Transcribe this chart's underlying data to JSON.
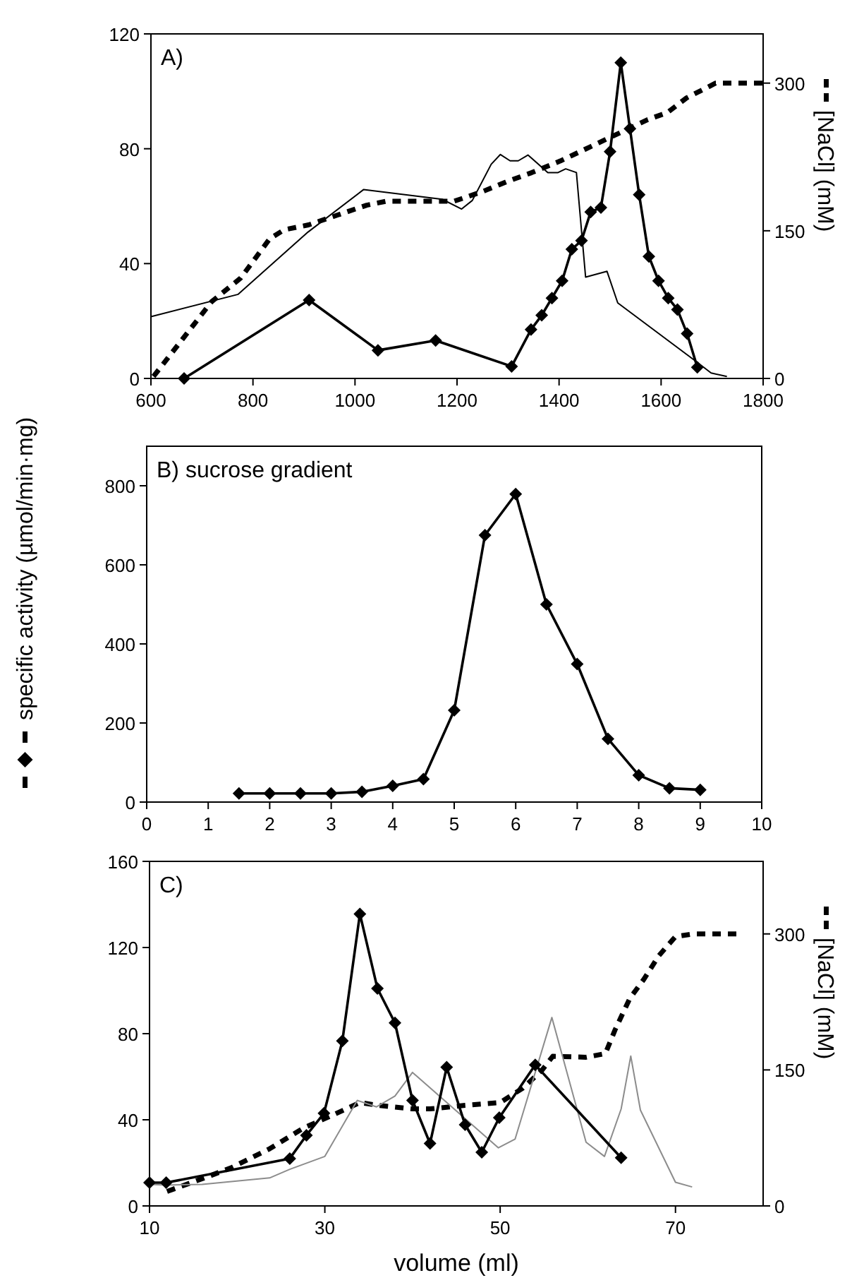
{
  "chart_data": [
    {
      "type": "line",
      "title": "A)",
      "xlim": [
        600,
        1800
      ],
      "xticks": [
        600,
        800,
        1000,
        1200,
        1400,
        1600,
        1800
      ],
      "ylim": [
        0,
        120
      ],
      "yticks": [
        0,
        40,
        80,
        120
      ],
      "y2lim": [
        0,
        350
      ],
      "y2ticks": [
        0,
        150,
        300
      ],
      "y2label": "[NaCl] (mM)",
      "series": [
        {
          "color": "#000000",
          "marker": "none",
          "line_style": "dashed",
          "axis": "y2",
          "x": [
            605,
            662,
            719,
            776,
            833,
            861,
            909,
            966,
            1023,
            1061,
            1137,
            1194,
            1251,
            1298,
            1346,
            1403,
            1460,
            1517,
            1574,
            1612,
            1650,
            1707,
            1800
          ],
          "values": [
            2,
            40,
            78,
            102,
            142,
            151,
            156,
            166,
            176,
            180,
            180,
            180,
            190,
            200,
            209,
            221,
            235,
            249,
            263,
            270,
            285,
            300,
            300
          ]
        },
        {
          "color": "#000000",
          "marker": "none",
          "line_style": "solid",
          "x": [
            600,
            771,
            908,
            1017,
            1171,
            1209,
            1230,
            1267,
            1285,
            1304,
            1320,
            1339,
            1378,
            1398,
            1413,
            1434,
            1452,
            1494,
            1515,
            1665,
            1698,
            1729
          ],
          "values": [
            21.5,
            29.3,
            51,
            65.8,
            62.4,
            59,
            62,
            74.6,
            78,
            75.8,
            75.8,
            77.8,
            71.7,
            71.7,
            73,
            71.7,
            35.3,
            37.3,
            26.3,
            6.4,
            1.9,
            0.7
          ]
        },
        {
          "color": "#000000",
          "marker": "diamond",
          "line_style": "solid",
          "x": [
            665,
            910,
            1045,
            1158,
            1307,
            1345,
            1366,
            1386,
            1406,
            1425,
            1444,
            1462,
            1482,
            1500,
            1521,
            1539,
            1557,
            1576,
            1595,
            1614,
            1632,
            1651,
            1671
          ],
          "values": [
            0,
            27.3,
            9.8,
            13.2,
            4.2,
            17,
            22,
            28,
            34,
            45,
            48,
            58,
            59.5,
            79,
            110,
            87,
            64,
            42.5,
            34,
            28,
            24,
            15.6,
            3.9
          ]
        }
      ]
    },
    {
      "type": "line",
      "title": "B) sucrose gradient",
      "ylabel": "specific activity (µmol/min·mg)",
      "xlim": [
        0,
        10
      ],
      "xticks": [
        0,
        1,
        2,
        3,
        4,
        5,
        6,
        7,
        8,
        9,
        10
      ],
      "ylim": [
        0,
        900
      ],
      "yticks": [
        0,
        200,
        400,
        600,
        800
      ],
      "series": [
        {
          "color": "#000000",
          "marker": "diamond",
          "line_style": "solid",
          "x": [
            1.5,
            2,
            2.5,
            3,
            3.5,
            4,
            4.5,
            5,
            5.5,
            6,
            6.5,
            7,
            7.5,
            8,
            8.5,
            9
          ],
          "values": [
            22,
            22,
            22,
            22,
            26,
            41,
            58,
            232,
            675,
            779,
            500,
            349,
            160,
            68,
            35,
            31
          ]
        }
      ]
    },
    {
      "type": "line",
      "title": "C)",
      "xlabel": "volume (ml)",
      "xlim": [
        10,
        80
      ],
      "xticks": [
        10,
        30,
        50,
        70
      ],
      "ylim": [
        0,
        160
      ],
      "yticks": [
        0,
        40,
        80,
        120,
        160
      ],
      "y2lim": [
        0,
        380
      ],
      "y2ticks": [
        0,
        150,
        300
      ],
      "y2label": "[NaCl] (mM)",
      "series": [
        {
          "color": "#000000",
          "marker": "none",
          "line_style": "dashed",
          "axis": "y2",
          "x": [
            12,
            16,
            19.3,
            23.7,
            27.6,
            30.4,
            34,
            36,
            40,
            42,
            46,
            50,
            52.6,
            54.8,
            56,
            59.8,
            62,
            63.1,
            64.8,
            66.4,
            68.1,
            70,
            72,
            77.3
          ],
          "values": [
            16,
            30,
            42,
            63,
            86,
            98,
            114,
            111,
            107,
            107,
            111,
            114,
            130,
            150,
            165,
            164,
            168,
            194,
            229,
            250,
            276,
            297,
            300,
            300
          ]
        },
        {
          "color": "#8c8c8c",
          "marker": "none",
          "line_style": "solid",
          "x": [
            10,
            12,
            16,
            23.7,
            26,
            30,
            33.7,
            35.9,
            38,
            40,
            49.8,
            51.7,
            55.9,
            59.8,
            61.9,
            63.8,
            64.9,
            66,
            70,
            71.9
          ],
          "values": [
            10,
            9.7,
            10,
            13,
            17,
            23,
            49,
            46,
            51,
            62,
            27,
            31,
            87.5,
            29.6,
            23,
            45,
            69.6,
            44.5,
            11,
            8.8
          ]
        },
        {
          "color": "#000000",
          "marker": "diamond",
          "line_style": "solid",
          "x": [
            10,
            11.9,
            26,
            27.9,
            29.9,
            32,
            34,
            36,
            38,
            40,
            42,
            43.9,
            46,
            47.9,
            49.9,
            54,
            63.8
          ],
          "values": [
            10.8,
            10.8,
            22,
            32.8,
            43,
            76.6,
            135.6,
            101,
            85,
            49,
            29,
            64.4,
            37.7,
            24.9,
            41,
            65.5,
            22.4
          ]
        }
      ]
    }
  ]
}
